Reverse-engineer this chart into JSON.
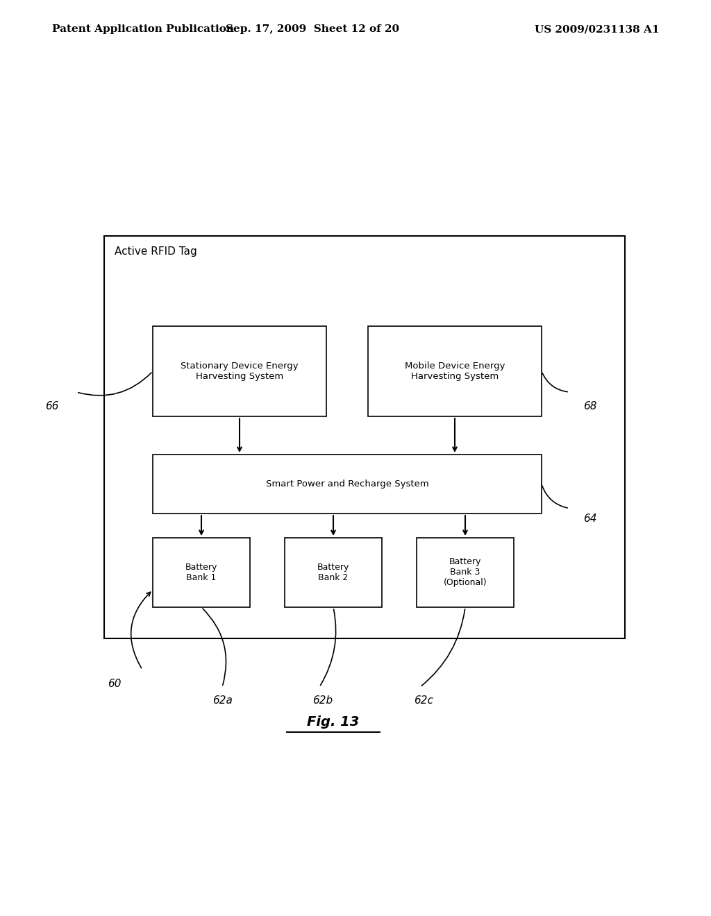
{
  "bg_color": "#ffffff",
  "header_left": "Patent Application Publication",
  "header_center": "Sep. 17, 2009  Sheet 12 of 20",
  "header_right": "US 2009/0231138 A1",
  "header_fontsize": 11,
  "fig_label": "Fig. 13",
  "outer_box_label": "Active RFID Tag",
  "box_stationary": "Stationary Device Energy\nHarvesting System",
  "box_mobile": "Mobile Device Energy\nHarvesting System",
  "box_smart": "Smart Power and Recharge System",
  "box_battery1": "Battery\nBank 1",
  "box_battery2": "Battery\nBank 2",
  "box_battery3": "Battery\nBank 3\n(Optional)",
  "label_66": "66",
  "label_68": "68",
  "label_64": "64",
  "label_60": "60",
  "label_62a": "62a",
  "label_62b": "62b",
  "label_62c": "62c"
}
